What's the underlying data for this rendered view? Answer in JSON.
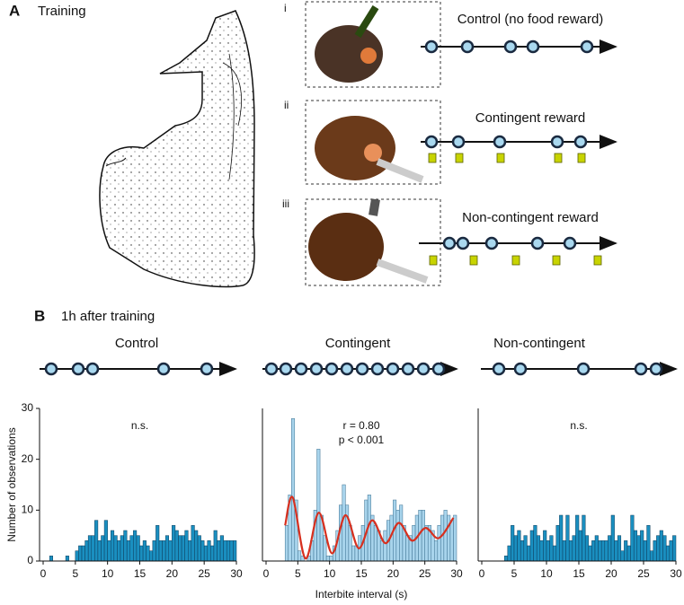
{
  "panel_a": {
    "label": "A",
    "title": "Training",
    "rows": [
      {
        "numeral": "i",
        "title": "Control (no food reward)"
      },
      {
        "numeral": "ii",
        "title": "Contingent reward"
      },
      {
        "numeral": "iii",
        "title": "Non-contingent reward"
      }
    ]
  },
  "panel_b": {
    "label": "B",
    "title": "1h after training"
  },
  "chart_data": [
    {
      "type": "histogram",
      "title": "Control",
      "ylabel": "Number of observations",
      "annotations": [
        "n.s."
      ],
      "color": "#1a8fc0",
      "edge": "#0d3d5c",
      "bins": [
        0,
        0.5,
        1,
        1.5,
        2,
        2.5,
        3,
        3.5,
        4,
        4.5,
        5,
        5.5,
        6,
        6.5,
        7,
        7.5,
        8,
        8.5,
        9,
        9.5,
        10,
        10.5,
        11,
        11.5,
        12,
        12.5,
        13,
        13.5,
        14,
        14.5,
        15,
        15.5,
        16,
        16.5,
        17,
        17.5,
        18,
        18.5,
        19,
        19.5,
        20,
        20.5,
        21,
        21.5,
        22,
        22.5,
        23,
        23.5,
        24,
        24.5,
        25,
        25.5,
        26,
        26.5,
        27,
        27.5,
        28,
        28.5,
        29,
        29.5,
        30
      ],
      "values": [
        0,
        0,
        1,
        0,
        0,
        0,
        0,
        1,
        0,
        0,
        2,
        3,
        3,
        4,
        5,
        5,
        8,
        4,
        5,
        8,
        4,
        6,
        5,
        4,
        5,
        6,
        4,
        5,
        6,
        5,
        3,
        4,
        3,
        2,
        4,
        7,
        4,
        4,
        5,
        4,
        7,
        6,
        5,
        5,
        6,
        4,
        7,
        6,
        5,
        4,
        3,
        4,
        3,
        6,
        4,
        5,
        4,
        4,
        4,
        4
      ],
      "xlim": [
        0,
        30
      ],
      "xticks": [
        0,
        5,
        10,
        15,
        20,
        25,
        30
      ],
      "ylim": [
        0,
        30
      ],
      "yticks": [
        0,
        10,
        20,
        30
      ]
    },
    {
      "type": "histogram",
      "title": "Contingent",
      "xlabel": "Interbite interval (s)",
      "annotations": [
        "r = 0.80",
        "p < 0.001"
      ],
      "color": "#a8d4ec",
      "edge": "#3a6f8f",
      "bins": [
        0,
        0.5,
        1,
        1.5,
        2,
        2.5,
        3,
        3.5,
        4,
        4.5,
        5,
        5.5,
        6,
        6.5,
        7,
        7.5,
        8,
        8.5,
        9,
        9.5,
        10,
        10.5,
        11,
        11.5,
        12,
        12.5,
        13,
        13.5,
        14,
        14.5,
        15,
        15.5,
        16,
        16.5,
        17,
        17.5,
        18,
        18.5,
        19,
        19.5,
        20,
        20.5,
        21,
        21.5,
        22,
        22.5,
        23,
        23.5,
        24,
        24.5,
        25,
        25.5,
        26,
        26.5,
        27,
        27.5,
        28,
        28.5,
        29,
        29.5,
        30
      ],
      "values": [
        0,
        0,
        0,
        0,
        0,
        0,
        7,
        13,
        28,
        12,
        2,
        1,
        0,
        1,
        4,
        10,
        22,
        9,
        5,
        1,
        1,
        3,
        6,
        11,
        15,
        11,
        7,
        3,
        3,
        5,
        7,
        12,
        13,
        9,
        7,
        6,
        4,
        6,
        8,
        9,
        12,
        10,
        11,
        7,
        5,
        5,
        7,
        9,
        10,
        10,
        7,
        7,
        6,
        4,
        7,
        9,
        10,
        9,
        8,
        9
      ],
      "fit": {
        "color": "#d7301f",
        "x": [
          3,
          4.2,
          6.2,
          8.3,
          10.4,
          12.5,
          14.6,
          16.7,
          18.8,
          20.9,
          23,
          25.1,
          27.2,
          29.5
        ],
        "values": [
          7,
          12.5,
          0.5,
          9.5,
          1.5,
          9,
          2.5,
          8,
          3.5,
          7.5,
          4,
          6.5,
          4.5,
          8.5
        ]
      },
      "xlim": [
        0,
        30
      ],
      "xticks": [
        0,
        5,
        10,
        15,
        20,
        25,
        30
      ],
      "ylim": [
        0,
        30
      ]
    },
    {
      "type": "histogram",
      "title": "Non-contingent",
      "annotations": [
        "n.s."
      ],
      "color": "#1a8fc0",
      "edge": "#0d3d5c",
      "bins": [
        0,
        0.5,
        1,
        1.5,
        2,
        2.5,
        3,
        3.5,
        4,
        4.5,
        5,
        5.5,
        6,
        6.5,
        7,
        7.5,
        8,
        8.5,
        9,
        9.5,
        10,
        10.5,
        11,
        11.5,
        12,
        12.5,
        13,
        13.5,
        14,
        14.5,
        15,
        15.5,
        16,
        16.5,
        17,
        17.5,
        18,
        18.5,
        19,
        19.5,
        20,
        20.5,
        21,
        21.5,
        22,
        22.5,
        23,
        23.5,
        24,
        24.5,
        25,
        25.5,
        26,
        26.5,
        27,
        27.5,
        28,
        28.5,
        29,
        29.5,
        30
      ],
      "values": [
        0,
        0,
        0,
        0,
        0,
        0,
        0,
        1,
        3,
        7,
        5,
        6,
        4,
        5,
        3,
        6,
        7,
        5,
        4,
        6,
        4,
        5,
        3,
        7,
        9,
        4,
        9,
        4,
        5,
        9,
        6,
        9,
        5,
        3,
        4,
        5,
        4,
        4,
        4,
        5,
        9,
        4,
        5,
        2,
        4,
        3,
        9,
        6,
        5,
        6,
        4,
        7,
        2,
        4,
        5,
        6,
        5,
        3,
        4,
        5
      ],
      "xlim": [
        0,
        30
      ],
      "xticks": [
        0,
        5,
        10,
        15,
        20,
        25,
        30
      ],
      "ylim": [
        0,
        30
      ]
    }
  ]
}
